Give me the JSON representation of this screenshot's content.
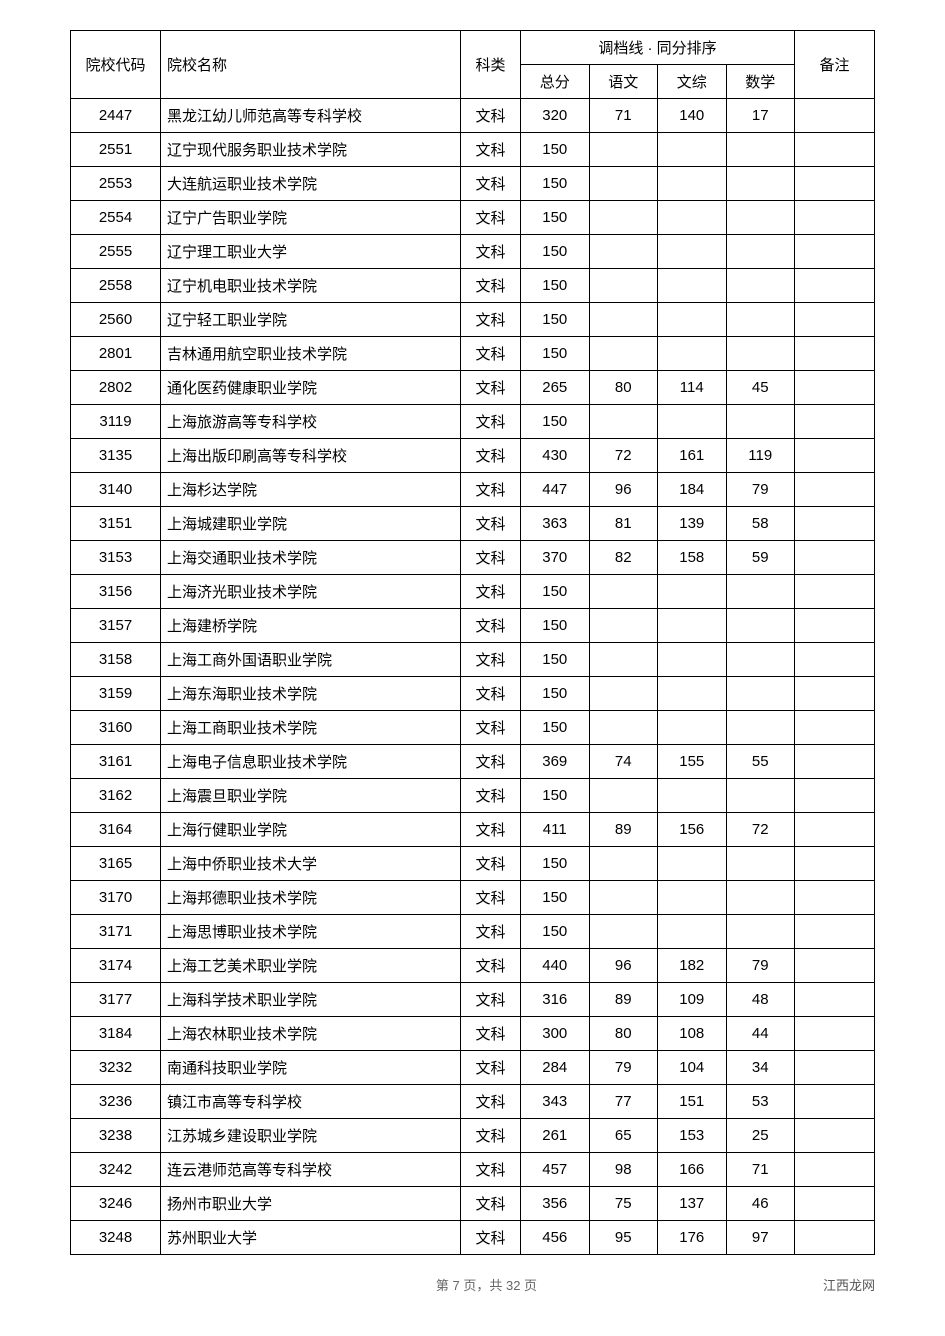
{
  "table": {
    "headers": {
      "code": "院校代码",
      "name": "院校名称",
      "category": "科类",
      "score_group": "调档线 · 同分排序",
      "total": "总分",
      "chinese": "语文",
      "wenzong": "文综",
      "math": "数学",
      "note": "备注"
    },
    "rows": [
      {
        "code": "2447",
        "name": "黑龙江幼儿师范高等专科学校",
        "cat": "文科",
        "total": "320",
        "c": "71",
        "w": "140",
        "m": "17",
        "note": ""
      },
      {
        "code": "2551",
        "name": "辽宁现代服务职业技术学院",
        "cat": "文科",
        "total": "150",
        "c": "",
        "w": "",
        "m": "",
        "note": ""
      },
      {
        "code": "2553",
        "name": "大连航运职业技术学院",
        "cat": "文科",
        "total": "150",
        "c": "",
        "w": "",
        "m": "",
        "note": ""
      },
      {
        "code": "2554",
        "name": "辽宁广告职业学院",
        "cat": "文科",
        "total": "150",
        "c": "",
        "w": "",
        "m": "",
        "note": ""
      },
      {
        "code": "2555",
        "name": "辽宁理工职业大学",
        "cat": "文科",
        "total": "150",
        "c": "",
        "w": "",
        "m": "",
        "note": ""
      },
      {
        "code": "2558",
        "name": "辽宁机电职业技术学院",
        "cat": "文科",
        "total": "150",
        "c": "",
        "w": "",
        "m": "",
        "note": ""
      },
      {
        "code": "2560",
        "name": "辽宁轻工职业学院",
        "cat": "文科",
        "total": "150",
        "c": "",
        "w": "",
        "m": "",
        "note": ""
      },
      {
        "code": "2801",
        "name": "吉林通用航空职业技术学院",
        "cat": "文科",
        "total": "150",
        "c": "",
        "w": "",
        "m": "",
        "note": ""
      },
      {
        "code": "2802",
        "name": "通化医药健康职业学院",
        "cat": "文科",
        "total": "265",
        "c": "80",
        "w": "114",
        "m": "45",
        "note": ""
      },
      {
        "code": "3119",
        "name": "上海旅游高等专科学校",
        "cat": "文科",
        "total": "150",
        "c": "",
        "w": "",
        "m": "",
        "note": ""
      },
      {
        "code": "3135",
        "name": "上海出版印刷高等专科学校",
        "cat": "文科",
        "total": "430",
        "c": "72",
        "w": "161",
        "m": "119",
        "note": ""
      },
      {
        "code": "3140",
        "name": "上海杉达学院",
        "cat": "文科",
        "total": "447",
        "c": "96",
        "w": "184",
        "m": "79",
        "note": ""
      },
      {
        "code": "3151",
        "name": "上海城建职业学院",
        "cat": "文科",
        "total": "363",
        "c": "81",
        "w": "139",
        "m": "58",
        "note": ""
      },
      {
        "code": "3153",
        "name": "上海交通职业技术学院",
        "cat": "文科",
        "total": "370",
        "c": "82",
        "w": "158",
        "m": "59",
        "note": ""
      },
      {
        "code": "3156",
        "name": "上海济光职业技术学院",
        "cat": "文科",
        "total": "150",
        "c": "",
        "w": "",
        "m": "",
        "note": ""
      },
      {
        "code": "3157",
        "name": "上海建桥学院",
        "cat": "文科",
        "total": "150",
        "c": "",
        "w": "",
        "m": "",
        "note": ""
      },
      {
        "code": "3158",
        "name": "上海工商外国语职业学院",
        "cat": "文科",
        "total": "150",
        "c": "",
        "w": "",
        "m": "",
        "note": ""
      },
      {
        "code": "3159",
        "name": "上海东海职业技术学院",
        "cat": "文科",
        "total": "150",
        "c": "",
        "w": "",
        "m": "",
        "note": ""
      },
      {
        "code": "3160",
        "name": "上海工商职业技术学院",
        "cat": "文科",
        "total": "150",
        "c": "",
        "w": "",
        "m": "",
        "note": ""
      },
      {
        "code": "3161",
        "name": "上海电子信息职业技术学院",
        "cat": "文科",
        "total": "369",
        "c": "74",
        "w": "155",
        "m": "55",
        "note": ""
      },
      {
        "code": "3162",
        "name": "上海震旦职业学院",
        "cat": "文科",
        "total": "150",
        "c": "",
        "w": "",
        "m": "",
        "note": ""
      },
      {
        "code": "3164",
        "name": "上海行健职业学院",
        "cat": "文科",
        "total": "411",
        "c": "89",
        "w": "156",
        "m": "72",
        "note": ""
      },
      {
        "code": "3165",
        "name": "上海中侨职业技术大学",
        "cat": "文科",
        "total": "150",
        "c": "",
        "w": "",
        "m": "",
        "note": ""
      },
      {
        "code": "3170",
        "name": "上海邦德职业技术学院",
        "cat": "文科",
        "total": "150",
        "c": "",
        "w": "",
        "m": "",
        "note": ""
      },
      {
        "code": "3171",
        "name": "上海思博职业技术学院",
        "cat": "文科",
        "total": "150",
        "c": "",
        "w": "",
        "m": "",
        "note": ""
      },
      {
        "code": "3174",
        "name": "上海工艺美术职业学院",
        "cat": "文科",
        "total": "440",
        "c": "96",
        "w": "182",
        "m": "79",
        "note": ""
      },
      {
        "code": "3177",
        "name": "上海科学技术职业学院",
        "cat": "文科",
        "total": "316",
        "c": "89",
        "w": "109",
        "m": "48",
        "note": ""
      },
      {
        "code": "3184",
        "name": "上海农林职业技术学院",
        "cat": "文科",
        "total": "300",
        "c": "80",
        "w": "108",
        "m": "44",
        "note": ""
      },
      {
        "code": "3232",
        "name": "南通科技职业学院",
        "cat": "文科",
        "total": "284",
        "c": "79",
        "w": "104",
        "m": "34",
        "note": ""
      },
      {
        "code": "3236",
        "name": "镇江市高等专科学校",
        "cat": "文科",
        "total": "343",
        "c": "77",
        "w": "151",
        "m": "53",
        "note": ""
      },
      {
        "code": "3238",
        "name": "江苏城乡建设职业学院",
        "cat": "文科",
        "total": "261",
        "c": "65",
        "w": "153",
        "m": "25",
        "note": ""
      },
      {
        "code": "3242",
        "name": "连云港师范高等专科学校",
        "cat": "文科",
        "total": "457",
        "c": "98",
        "w": "166",
        "m": "71",
        "note": ""
      },
      {
        "code": "3246",
        "name": "扬州市职业大学",
        "cat": "文科",
        "total": "356",
        "c": "75",
        "w": "137",
        "m": "46",
        "note": ""
      },
      {
        "code": "3248",
        "name": "苏州职业大学",
        "cat": "文科",
        "total": "456",
        "c": "95",
        "w": "176",
        "m": "97",
        "note": ""
      }
    ]
  },
  "footer": {
    "page_info": "第 7 页，共 32 页",
    "brand": "江西龙网"
  }
}
